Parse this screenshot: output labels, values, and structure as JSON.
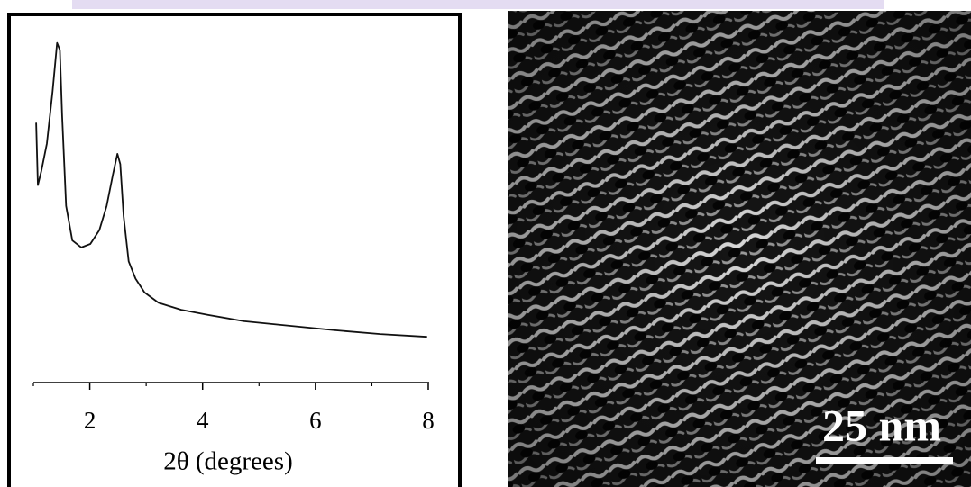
{
  "chart_data": {
    "type": "line",
    "xlabel": "2θ (degrees)",
    "x": [
      1.05,
      1.08,
      1.14,
      1.24,
      1.34,
      1.42,
      1.47,
      1.51,
      1.58,
      1.69,
      1.85,
      2.01,
      2.17,
      2.3,
      2.41,
      2.49,
      2.54,
      2.6,
      2.69,
      2.81,
      2.97,
      3.22,
      3.62,
      4.1,
      4.74,
      5.54,
      6.35,
      7.15,
      7.98
    ],
    "values": [
      75,
      57,
      61,
      69,
      84,
      98,
      96,
      77,
      51,
      41,
      39,
      40,
      44,
      51,
      60,
      66,
      63,
      48,
      35,
      30,
      26,
      23,
      21,
      19.5,
      17.7,
      16.4,
      15.1,
      14,
      13.2
    ],
    "color": "#111111",
    "xlim": [
      1,
      8
    ],
    "xticks": [
      2,
      4,
      6,
      8
    ],
    "xminorticks": [
      1,
      3,
      5,
      7
    ],
    "ylim": [
      0,
      100
    ]
  },
  "image": {
    "scale_bar_label": "25 nm"
  }
}
